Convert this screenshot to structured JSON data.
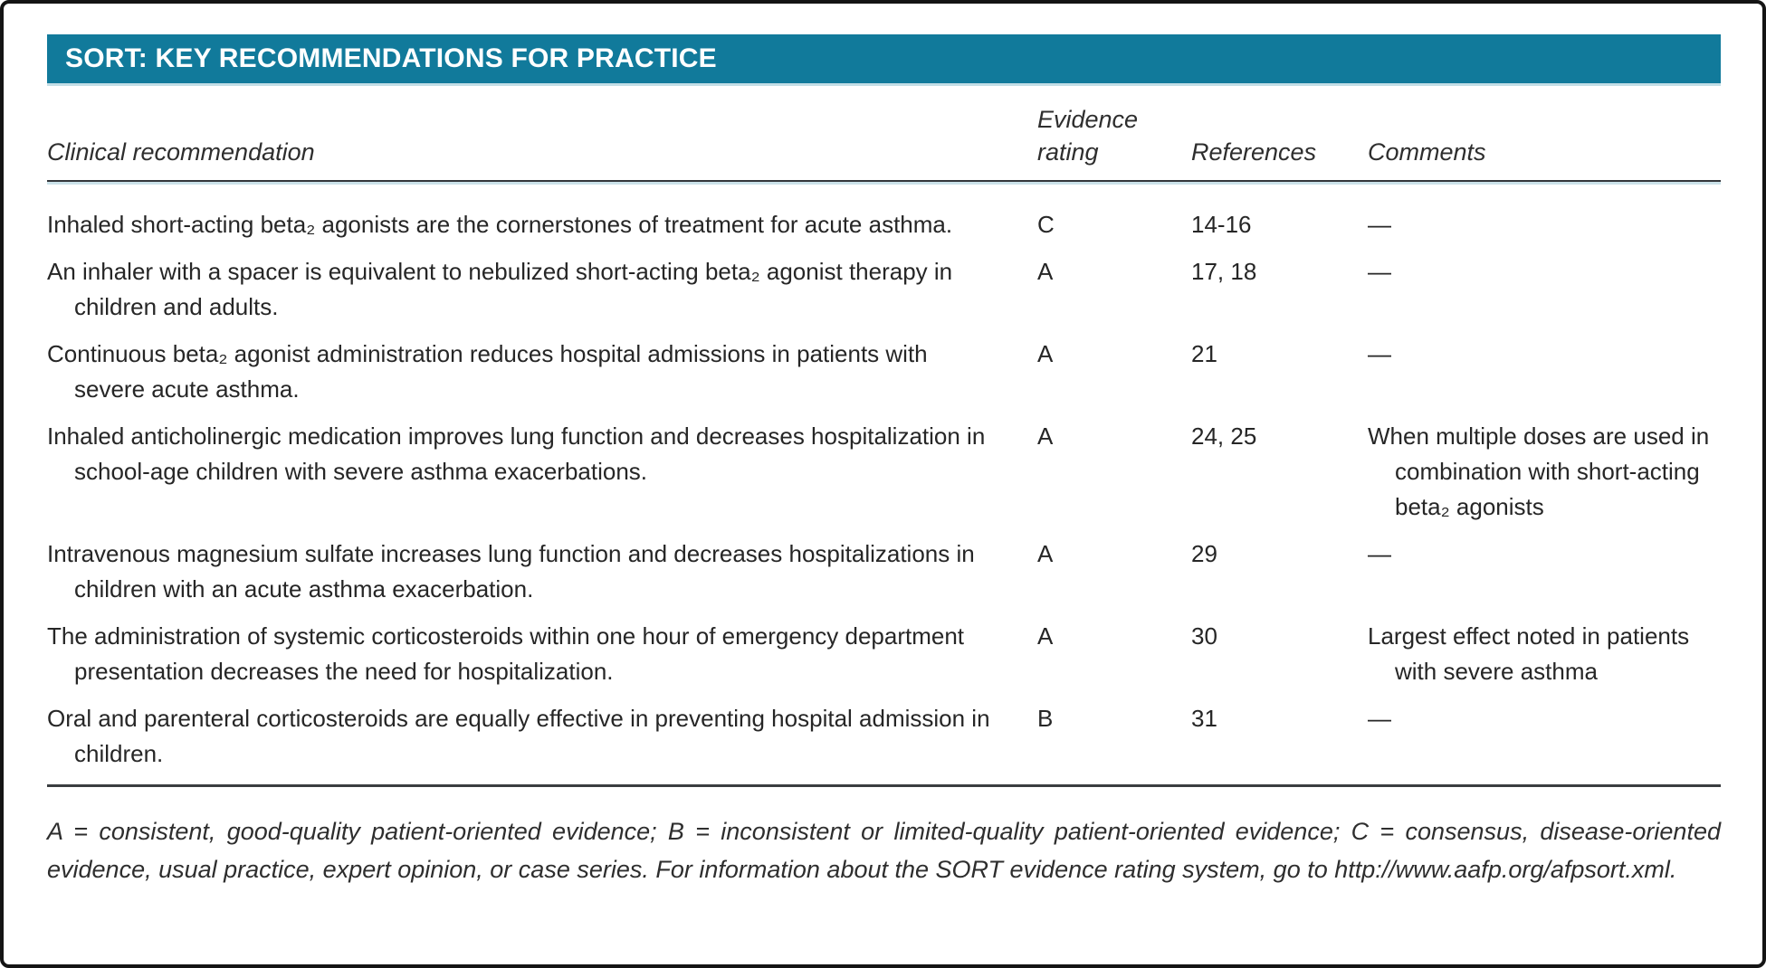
{
  "title": "SORT: KEY RECOMMENDATIONS FOR PRACTICE",
  "colors": {
    "accent_teal": "#117a9b",
    "text": "#262626",
    "border": "#141414"
  },
  "columns": {
    "clinical": "Clinical recommendation",
    "evidence": "Evidence rating",
    "references": "References",
    "comments": "Comments"
  },
  "rows": [
    {
      "recommendation": "Inhaled short-acting beta₂ agonists are the cornerstones of treatment for acute asthma.",
      "evidence": "C",
      "references": "14-16",
      "comments": "—"
    },
    {
      "recommendation": "An inhaler with a spacer is equivalent to nebulized short-acting beta₂ agonist therapy in children and adults.",
      "evidence": "A",
      "references": "17, 18",
      "comments": "—"
    },
    {
      "recommendation": "Continuous beta₂ agonist administration reduces hospital admissions in patients with severe acute asthma.",
      "evidence": "A",
      "references": "21",
      "comments": "—"
    },
    {
      "recommendation": "Inhaled anticholinergic medication improves lung function and decreases hospitalization in school-age children with severe asthma exacerbations.",
      "evidence": "A",
      "references": "24, 25",
      "comments": "When multiple doses are used in combination with short-acting beta₂ agonists"
    },
    {
      "recommendation": "Intravenous magnesium sulfate increases lung function and decreases hospitalizations in children with an acute asthma exacerbation.",
      "evidence": "A",
      "references": "29",
      "comments": "—"
    },
    {
      "recommendation": "The administration of systemic corticosteroids within one hour of emergency department presentation decreases the need for hospitalization.",
      "evidence": "A",
      "references": "30",
      "comments": "Largest effect noted in patients with severe asthma"
    },
    {
      "recommendation": "Oral and parenteral corticosteroids are equally effective in preventing hospital admission in children.",
      "evidence": "B",
      "references": "31",
      "comments": "—"
    }
  ],
  "footnote": "A = consistent, good-quality patient-oriented evidence; B = inconsistent or limited-quality patient-oriented evidence; C = consensus, disease-oriented evidence, usual practice, expert opinion, or case series. For information about the SORT evidence rating system, go to http://www.aafp.org/afpsort.xml."
}
